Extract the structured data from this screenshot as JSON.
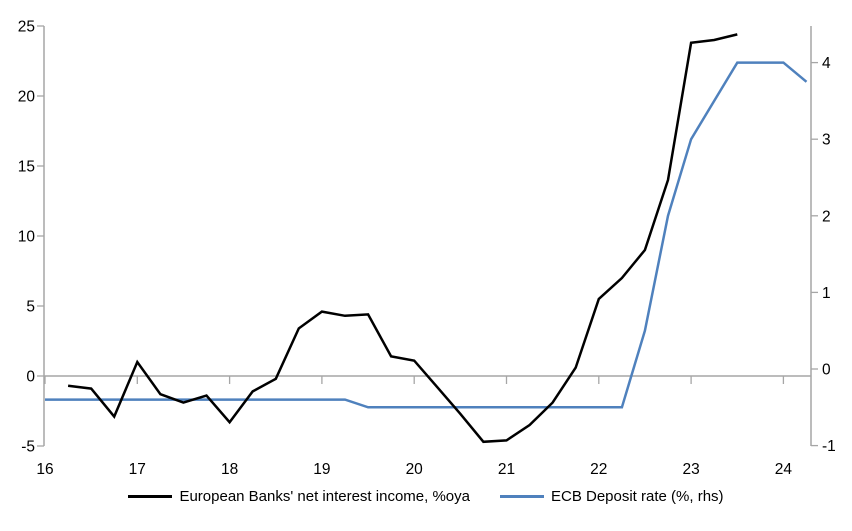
{
  "chart_data": {
    "type": "line",
    "title": "",
    "grid": false,
    "zero_line": true,
    "legend_position": "bottom-center",
    "x_axis": {
      "tick_labels": [
        "16",
        "17",
        "18",
        "19",
        "20",
        "21",
        "22",
        "23",
        "24"
      ],
      "tick_values": [
        16,
        17,
        18,
        19,
        20,
        21,
        22,
        23,
        24
      ],
      "range": [
        16,
        24.45
      ]
    },
    "left_axis": {
      "ticks": [
        25,
        20,
        15,
        10,
        5,
        0,
        -5
      ],
      "range": [
        -5,
        25
      ],
      "color": "#a6a6a6"
    },
    "right_axis": {
      "ticks": [
        4,
        3,
        2,
        1,
        0,
        -1
      ],
      "range": [
        -1,
        4.5
      ],
      "color": "#a6a6a6"
    },
    "series": [
      {
        "name": "European Banks' net interest income, %oya",
        "axis": "left",
        "color": "#000000",
        "x": [
          16.25,
          16.5,
          16.75,
          17.0,
          17.25,
          17.5,
          17.75,
          18.0,
          18.25,
          18.5,
          18.75,
          19.0,
          19.25,
          19.5,
          19.75,
          20.0,
          20.25,
          20.5,
          20.75,
          21.0,
          21.25,
          21.5,
          21.75,
          22.0,
          22.25,
          22.5,
          22.75,
          23.0,
          23.25,
          23.5
        ],
        "values": [
          -0.7,
          -0.9,
          -2.9,
          1.0,
          -1.3,
          -1.9,
          -1.4,
          -3.3,
          -1.1,
          -0.2,
          3.4,
          4.6,
          4.3,
          4.4,
          1.4,
          1.1,
          -0.8,
          -2.7,
          -4.7,
          -4.6,
          -3.5,
          -1.9,
          0.6,
          5.5,
          7.0,
          9.0,
          14.0,
          23.8,
          24.0,
          24.4
        ]
      },
      {
        "name": "ECB Deposit rate (%, rhs)",
        "axis": "right",
        "color": "#4f81bd",
        "x": [
          16.0,
          16.25,
          16.5,
          16.75,
          17.0,
          17.25,
          17.5,
          17.75,
          18.0,
          18.25,
          18.5,
          18.75,
          19.0,
          19.25,
          19.5,
          19.75,
          20.0,
          20.25,
          20.5,
          20.75,
          21.0,
          21.25,
          21.5,
          21.75,
          22.0,
          22.25,
          22.5,
          22.75,
          23.0,
          23.25,
          23.5,
          23.75,
          24.0,
          24.25
        ],
        "values": [
          -0.4,
          -0.4,
          -0.4,
          -0.4,
          -0.4,
          -0.4,
          -0.4,
          -0.4,
          -0.4,
          -0.4,
          -0.4,
          -0.4,
          -0.4,
          -0.4,
          -0.5,
          -0.5,
          -0.5,
          -0.5,
          -0.5,
          -0.5,
          -0.5,
          -0.5,
          -0.5,
          -0.5,
          -0.5,
          -0.5,
          0.5,
          2.0,
          3.0,
          3.5,
          4.0,
          4.0,
          4.0,
          3.75
        ]
      }
    ]
  }
}
